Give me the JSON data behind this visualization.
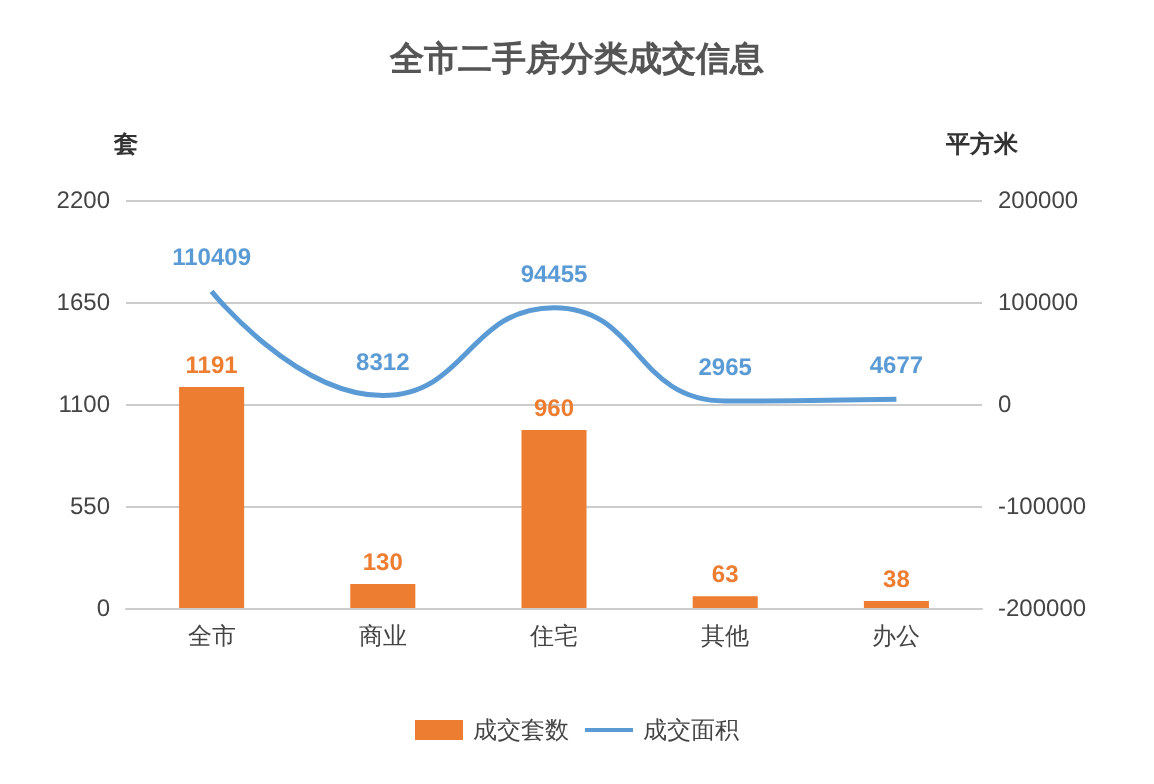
{
  "chart_data": {
    "type": "bar",
    "title": "全市二手房分类成交信息",
    "ylabel": "套",
    "y2label": "平方米",
    "categories": [
      "全市",
      "商业",
      "住宅",
      "其他",
      "办公"
    ],
    "series": [
      {
        "name": "成交套数",
        "color": "#ed7d31",
        "values": [
          1191,
          130,
          960,
          63,
          38
        ]
      },
      {
        "name": "成交面积",
        "type": "line",
        "axis": "y2",
        "color": "#5b9bd5",
        "values": [
          110409,
          8312,
          94455,
          2965,
          4677
        ]
      }
    ],
    "ylim": [
      0,
      2200
    ],
    "yticks": [
      0,
      550,
      1100,
      1650,
      2200
    ],
    "y2lim": [
      -200000,
      200000
    ],
    "y2ticks": [
      -200000,
      -100000,
      0,
      100000,
      200000
    ],
    "grid": "y",
    "legend": "bottom",
    "data_labels": true,
    "marker": "none",
    "line_style": "solid"
  }
}
